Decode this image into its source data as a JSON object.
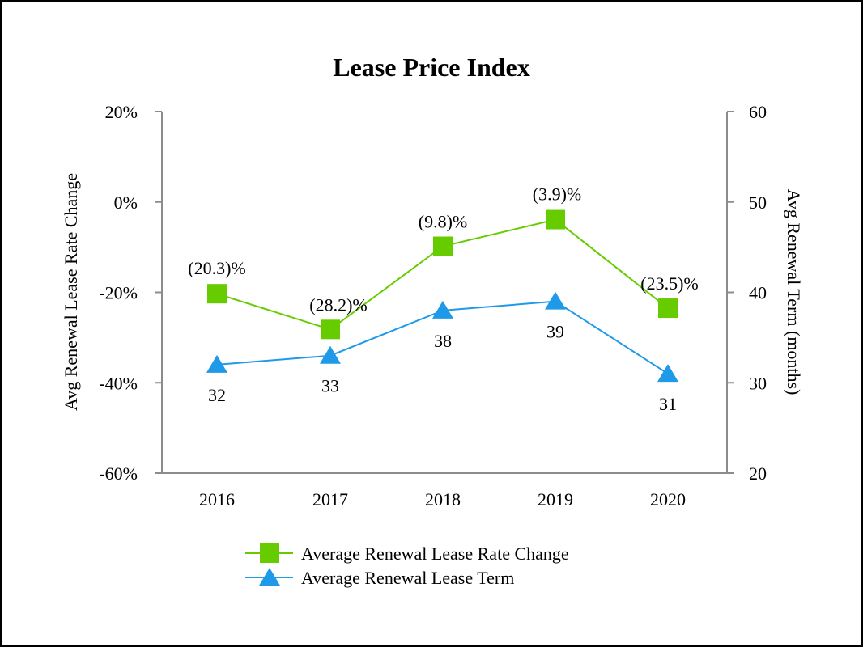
{
  "chart_data": {
    "type": "line",
    "title": "Lease Price Index",
    "categories": [
      "2016",
      "2017",
      "2018",
      "2019",
      "2020"
    ],
    "series": [
      {
        "name": "Average Renewal Lease Rate Change",
        "axis": "left",
        "marker": "square",
        "color": "#66cc00",
        "values": [
          -20.3,
          -28.2,
          -9.8,
          -3.9,
          -23.5
        ],
        "labels": [
          "(20.3)%",
          "(28.2)%",
          "(9.8)%",
          "(3.9)%",
          "(23.5)%"
        ]
      },
      {
        "name": "Average Renewal Lease Term",
        "axis": "right",
        "marker": "triangle",
        "color": "#1f9ae8",
        "values": [
          32,
          33,
          38,
          39,
          31
        ],
        "labels": [
          "32",
          "33",
          "38",
          "39",
          "31"
        ]
      }
    ],
    "y_left": {
      "label": "Avg Renewal Lease Rate Change",
      "range": [
        -60,
        20
      ],
      "ticks": [
        20,
        0,
        -20,
        -40,
        -60
      ],
      "tick_labels": [
        "20%",
        "0%",
        "-20%",
        "-40%",
        "-60%"
      ]
    },
    "y_right": {
      "label": "Avg Renewal Term (months)",
      "range": [
        20,
        60
      ],
      "ticks": [
        60,
        50,
        40,
        30,
        20
      ],
      "tick_labels": [
        "60",
        "50",
        "40",
        "30",
        "20"
      ]
    },
    "grid": false,
    "legend_position": "bottom-center"
  }
}
